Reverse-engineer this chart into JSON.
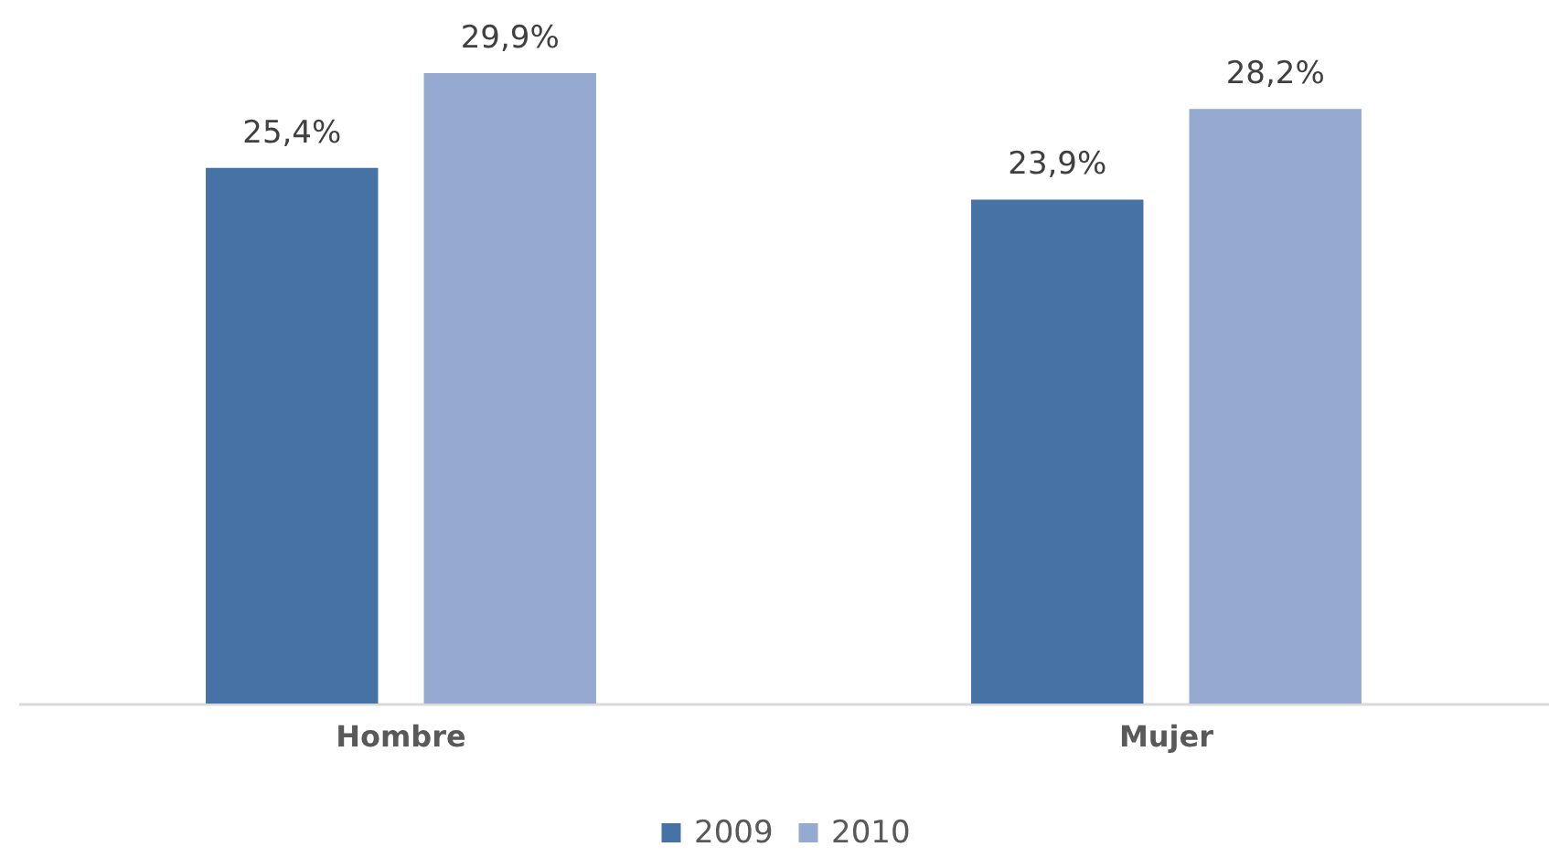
{
  "chart_data": {
    "type": "bar",
    "categories": [
      "Hombre",
      "Mujer"
    ],
    "series": [
      {
        "name": "2009",
        "color": "#4672a6",
        "values": [
          25.4,
          23.9
        ],
        "value_labels": [
          "25,4%",
          "23,9%"
        ]
      },
      {
        "name": "2010",
        "color": "#95a9d1",
        "values": [
          29.9,
          28.2
        ],
        "value_labels": [
          "29,9%",
          "28,2%"
        ]
      }
    ],
    "tick_labels": "x",
    "grid": false,
    "legend": "bottom"
  }
}
